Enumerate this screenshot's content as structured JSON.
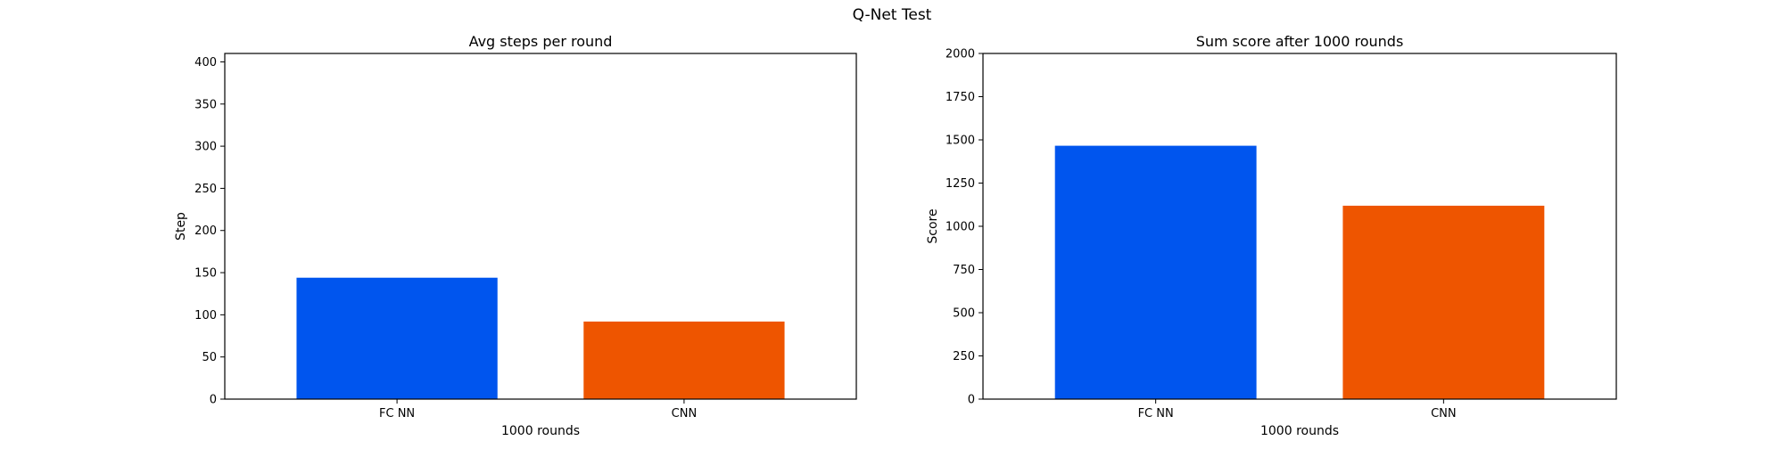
{
  "figure": {
    "title": "Q-Net Test"
  },
  "chart_data": [
    {
      "type": "bar",
      "title": "Avg steps per round",
      "xlabel": "1000 rounds",
      "ylabel": "Step",
      "categories": [
        "FC NN",
        "CNN"
      ],
      "values": [
        144,
        92
      ],
      "colors": [
        "#0055ee",
        "#ee5500"
      ],
      "ylim": [
        0,
        410
      ],
      "yticks": [
        0,
        50,
        100,
        150,
        200,
        250,
        300,
        350,
        400
      ],
      "grid": false,
      "legend": "none"
    },
    {
      "type": "bar",
      "title": "Sum score after 1000 rounds",
      "xlabel": "1000 rounds",
      "ylabel": "Score",
      "categories": [
        "FC NN",
        "CNN"
      ],
      "values": [
        1466,
        1119
      ],
      "colors": [
        "#0055ee",
        "#ee5500"
      ],
      "ylim": [
        0,
        2000
      ],
      "yticks": [
        0,
        250,
        500,
        750,
        1000,
        1250,
        1500,
        1750,
        2000
      ],
      "grid": false,
      "legend": "none"
    }
  ]
}
